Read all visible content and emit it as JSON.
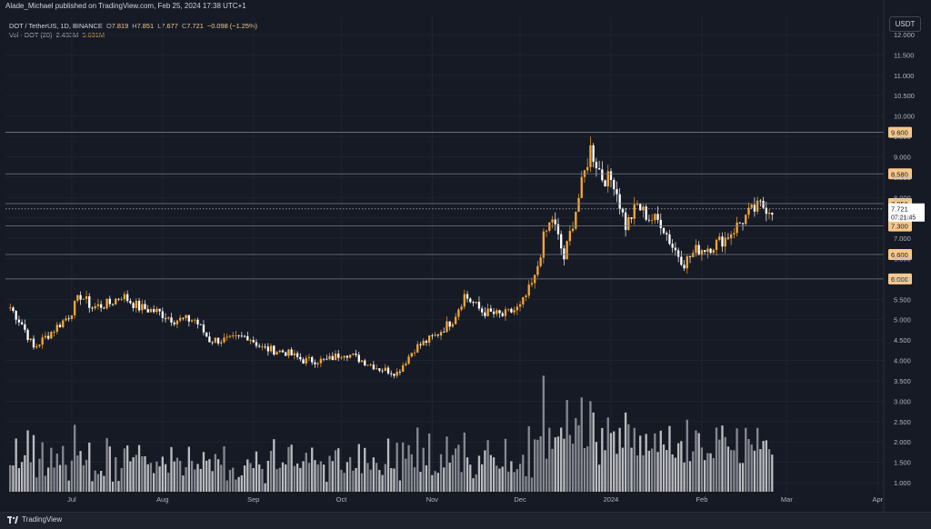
{
  "publisher_line": "Alade_Michael published on TradingView.com, Feb 25, 2024 17:38 UTC+1",
  "legend": {
    "symbol": "DOT / TetherUS, 1D, BINANCE",
    "o_label": "O",
    "o_value": "7.819",
    "h_label": "H",
    "h_value": "7.851",
    "l_label": "L",
    "l_value": "7.677",
    "c_label": "C",
    "c_value": "7.721",
    "change": "−0.098 (−1.25%)",
    "volume_label": "Vol · DOT (20)",
    "volume_value": "2.433M",
    "volume_ma_value": "5.631M"
  },
  "currency_button": "USDT",
  "footer": {
    "brand": "TradingView"
  },
  "colors": {
    "background": "#161a25",
    "up": "#f7a632",
    "down": "#ffffff",
    "level_line": "#787b86",
    "text": "#d1d4dc",
    "price_tag": "#f7c98b"
  },
  "chart_data": {
    "type": "candlestick",
    "symbol": "DOT/USDT",
    "timeframe": "1D",
    "x_ticks": [
      "Jul",
      "Aug",
      "Sep",
      "Oct",
      "Nov",
      "Dec",
      "2024",
      "Feb",
      "Mar",
      "Apr"
    ],
    "y_ticks": [
      "1.000",
      "1.500",
      "2.000",
      "2.500",
      "3.000",
      "3.500",
      "4.000",
      "4.500",
      "5.000",
      "5.500",
      "6.000",
      "6.500",
      "7.000",
      "7.500",
      "8.000",
      "8.500",
      "9.000",
      "9.500",
      "10.000",
      "10.500",
      "11.000",
      "11.500",
      "12.000"
    ],
    "ylim": [
      0.85,
      12.2
    ],
    "horizontal_levels": [
      9.6,
      8.58,
      7.85,
      7.3,
      6.6,
      6.0
    ],
    "level_labels": [
      "9.600",
      "8.580",
      "7.850",
      "7.300",
      "6.600",
      "6.000"
    ],
    "current_price": "7.721",
    "countdown": "07:21:45",
    "price_path": [
      [
        "2023-06-10",
        5.3
      ],
      [
        "2023-06-14",
        4.9
      ],
      [
        "2023-06-18",
        4.3
      ],
      [
        "2023-06-24",
        4.7
      ],
      [
        "2023-06-30",
        5.1
      ],
      [
        "2023-07-04",
        5.6
      ],
      [
        "2023-07-08",
        5.3
      ],
      [
        "2023-07-14",
        5.4
      ],
      [
        "2023-07-18",
        5.6
      ],
      [
        "2023-07-24",
        5.3
      ],
      [
        "2023-07-30",
        5.2
      ],
      [
        "2023-08-05",
        5.0
      ],
      [
        "2023-08-12",
        5.0
      ],
      [
        "2023-08-17",
        4.5
      ],
      [
        "2023-08-24",
        4.5
      ],
      [
        "2023-08-30",
        4.6
      ],
      [
        "2023-09-04",
        4.3
      ],
      [
        "2023-09-12",
        4.2
      ],
      [
        "2023-09-18",
        4.0
      ],
      [
        "2023-09-26",
        4.0
      ],
      [
        "2023-10-02",
        4.2
      ],
      [
        "2023-10-08",
        4.0
      ],
      [
        "2023-10-14",
        3.8
      ],
      [
        "2023-10-20",
        3.7
      ],
      [
        "2023-10-26",
        4.3
      ],
      [
        "2023-11-02",
        4.6
      ],
      [
        "2023-11-08",
        5.0
      ],
      [
        "2023-11-12",
        5.6
      ],
      [
        "2023-11-18",
        5.2
      ],
      [
        "2023-11-25",
        5.1
      ],
      [
        "2023-12-01",
        5.3
      ],
      [
        "2023-12-06",
        6.0
      ],
      [
        "2023-12-09",
        7.0
      ],
      [
        "2023-12-12",
        7.5
      ],
      [
        "2023-12-16",
        6.5
      ],
      [
        "2023-12-21",
        8.0
      ],
      [
        "2023-12-25",
        9.2
      ],
      [
        "2023-12-29",
        8.5
      ],
      [
        "2024-01-02",
        8.4
      ],
      [
        "2024-01-06",
        7.3
      ],
      [
        "2024-01-10",
        7.8
      ],
      [
        "2024-01-14",
        7.5
      ],
      [
        "2024-01-18",
        7.4
      ],
      [
        "2024-01-22",
        6.8
      ],
      [
        "2024-01-26",
        6.4
      ],
      [
        "2024-01-30",
        6.7
      ],
      [
        "2024-02-04",
        6.8
      ],
      [
        "2024-02-09",
        7.0
      ],
      [
        "2024-02-13",
        7.3
      ],
      [
        "2024-02-17",
        7.6
      ],
      [
        "2024-02-21",
        7.8
      ],
      [
        "2024-02-25",
        7.72
      ]
    ]
  }
}
